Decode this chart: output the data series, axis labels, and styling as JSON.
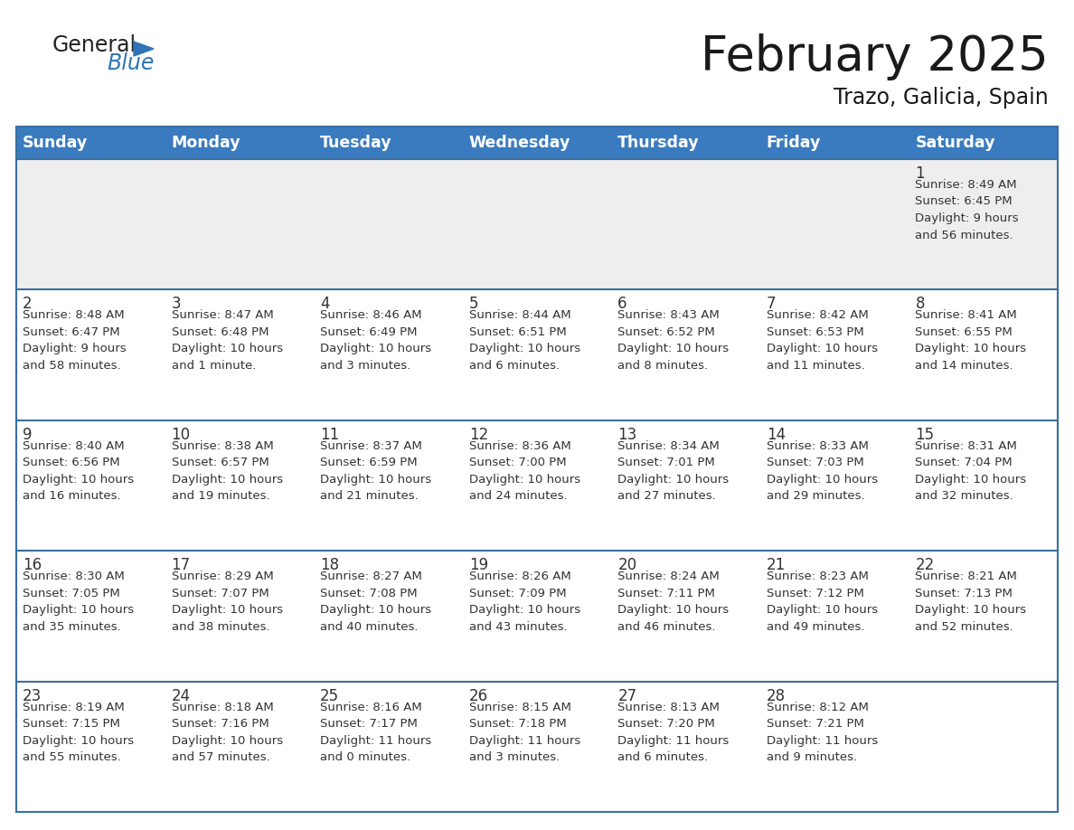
{
  "title": "February 2025",
  "subtitle": "Trazo, Galicia, Spain",
  "days_of_week": [
    "Sunday",
    "Monday",
    "Tuesday",
    "Wednesday",
    "Thursday",
    "Friday",
    "Saturday"
  ],
  "header_bg": "#3a7bbf",
  "header_text": "#ffffff",
  "row1_bg": "#eeeeee",
  "row_bg": "#ffffff",
  "separator_color": "#3a6fa0",
  "text_color": "#333333",
  "day_num_color": "#333333",
  "logo_general_color": "#222222",
  "logo_blue_color": "#2e75b6",
  "calendar_data": [
    [
      {
        "day": "",
        "info": ""
      },
      {
        "day": "",
        "info": ""
      },
      {
        "day": "",
        "info": ""
      },
      {
        "day": "",
        "info": ""
      },
      {
        "day": "",
        "info": ""
      },
      {
        "day": "",
        "info": ""
      },
      {
        "day": "1",
        "info": "Sunrise: 8:49 AM\nSunset: 6:45 PM\nDaylight: 9 hours\nand 56 minutes."
      }
    ],
    [
      {
        "day": "2",
        "info": "Sunrise: 8:48 AM\nSunset: 6:47 PM\nDaylight: 9 hours\nand 58 minutes."
      },
      {
        "day": "3",
        "info": "Sunrise: 8:47 AM\nSunset: 6:48 PM\nDaylight: 10 hours\nand 1 minute."
      },
      {
        "day": "4",
        "info": "Sunrise: 8:46 AM\nSunset: 6:49 PM\nDaylight: 10 hours\nand 3 minutes."
      },
      {
        "day": "5",
        "info": "Sunrise: 8:44 AM\nSunset: 6:51 PM\nDaylight: 10 hours\nand 6 minutes."
      },
      {
        "day": "6",
        "info": "Sunrise: 8:43 AM\nSunset: 6:52 PM\nDaylight: 10 hours\nand 8 minutes."
      },
      {
        "day": "7",
        "info": "Sunrise: 8:42 AM\nSunset: 6:53 PM\nDaylight: 10 hours\nand 11 minutes."
      },
      {
        "day": "8",
        "info": "Sunrise: 8:41 AM\nSunset: 6:55 PM\nDaylight: 10 hours\nand 14 minutes."
      }
    ],
    [
      {
        "day": "9",
        "info": "Sunrise: 8:40 AM\nSunset: 6:56 PM\nDaylight: 10 hours\nand 16 minutes."
      },
      {
        "day": "10",
        "info": "Sunrise: 8:38 AM\nSunset: 6:57 PM\nDaylight: 10 hours\nand 19 minutes."
      },
      {
        "day": "11",
        "info": "Sunrise: 8:37 AM\nSunset: 6:59 PM\nDaylight: 10 hours\nand 21 minutes."
      },
      {
        "day": "12",
        "info": "Sunrise: 8:36 AM\nSunset: 7:00 PM\nDaylight: 10 hours\nand 24 minutes."
      },
      {
        "day": "13",
        "info": "Sunrise: 8:34 AM\nSunset: 7:01 PM\nDaylight: 10 hours\nand 27 minutes."
      },
      {
        "day": "14",
        "info": "Sunrise: 8:33 AM\nSunset: 7:03 PM\nDaylight: 10 hours\nand 29 minutes."
      },
      {
        "day": "15",
        "info": "Sunrise: 8:31 AM\nSunset: 7:04 PM\nDaylight: 10 hours\nand 32 minutes."
      }
    ],
    [
      {
        "day": "16",
        "info": "Sunrise: 8:30 AM\nSunset: 7:05 PM\nDaylight: 10 hours\nand 35 minutes."
      },
      {
        "day": "17",
        "info": "Sunrise: 8:29 AM\nSunset: 7:07 PM\nDaylight: 10 hours\nand 38 minutes."
      },
      {
        "day": "18",
        "info": "Sunrise: 8:27 AM\nSunset: 7:08 PM\nDaylight: 10 hours\nand 40 minutes."
      },
      {
        "day": "19",
        "info": "Sunrise: 8:26 AM\nSunset: 7:09 PM\nDaylight: 10 hours\nand 43 minutes."
      },
      {
        "day": "20",
        "info": "Sunrise: 8:24 AM\nSunset: 7:11 PM\nDaylight: 10 hours\nand 46 minutes."
      },
      {
        "day": "21",
        "info": "Sunrise: 8:23 AM\nSunset: 7:12 PM\nDaylight: 10 hours\nand 49 minutes."
      },
      {
        "day": "22",
        "info": "Sunrise: 8:21 AM\nSunset: 7:13 PM\nDaylight: 10 hours\nand 52 minutes."
      }
    ],
    [
      {
        "day": "23",
        "info": "Sunrise: 8:19 AM\nSunset: 7:15 PM\nDaylight: 10 hours\nand 55 minutes."
      },
      {
        "day": "24",
        "info": "Sunrise: 8:18 AM\nSunset: 7:16 PM\nDaylight: 10 hours\nand 57 minutes."
      },
      {
        "day": "25",
        "info": "Sunrise: 8:16 AM\nSunset: 7:17 PM\nDaylight: 11 hours\nand 0 minutes."
      },
      {
        "day": "26",
        "info": "Sunrise: 8:15 AM\nSunset: 7:18 PM\nDaylight: 11 hours\nand 3 minutes."
      },
      {
        "day": "27",
        "info": "Sunrise: 8:13 AM\nSunset: 7:20 PM\nDaylight: 11 hours\nand 6 minutes."
      },
      {
        "day": "28",
        "info": "Sunrise: 8:12 AM\nSunset: 7:21 PM\nDaylight: 11 hours\nand 9 minutes."
      },
      {
        "day": "",
        "info": ""
      }
    ]
  ]
}
